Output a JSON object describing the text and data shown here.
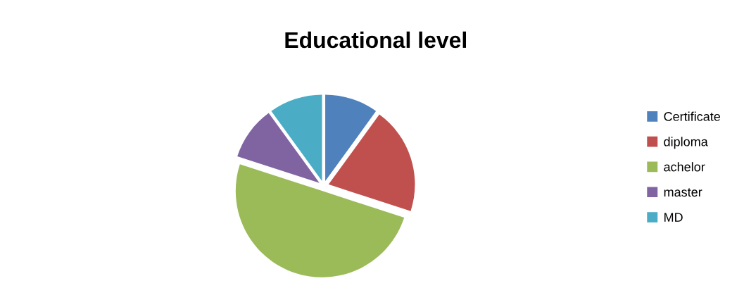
{
  "chart_data": {
    "type": "pie",
    "title": "Educational level",
    "categories": [
      "Certificate",
      "diploma",
      "achelor",
      "master",
      "MD"
    ],
    "values": [
      10,
      20,
      50,
      10,
      10
    ],
    "colors": [
      "#4f81bd",
      "#c0504d",
      "#9bbb59",
      "#8064a2",
      "#4bacc6"
    ],
    "legend": "right"
  }
}
